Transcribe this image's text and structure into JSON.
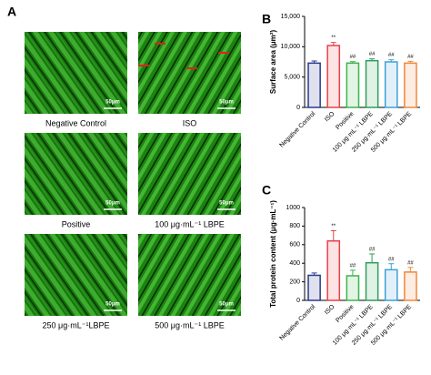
{
  "panel_a": {
    "label": "A",
    "images": [
      {
        "caption": "Negative Control",
        "scale_bar": "50μm"
      },
      {
        "caption": "ISO",
        "scale_bar": "50μm"
      },
      {
        "caption": "Positive",
        "scale_bar": "50μm"
      },
      {
        "caption": "100 μg·mL⁻¹ LBPE",
        "scale_bar": "50μm"
      },
      {
        "caption": "250 μg·mL⁻¹LBPE",
        "scale_bar": "50μm"
      },
      {
        "caption": "500 μg·mL⁻¹ LBPE",
        "scale_bar": "50μm"
      }
    ]
  },
  "chart_data": [
    {
      "type": "bar",
      "panel": "B",
      "ylabel": "Surface area (μm²)",
      "categories": [
        "Negative Control",
        "ISO",
        "Positive",
        "100 μg·mL⁻¹ LBPE",
        "250 μg·mL⁻¹ LBPE",
        "500 μg·mL⁻¹ LBPE"
      ],
      "values": [
        7300,
        10200,
        7300,
        7700,
        7500,
        7300
      ],
      "errors": [
        350,
        500,
        250,
        300,
        350,
        300
      ],
      "annotations": [
        null,
        "**",
        "##",
        "##",
        "##",
        "##"
      ],
      "colors": [
        "#2b3a8f",
        "#e8404a",
        "#3bb54a",
        "#2e9e5a",
        "#3ca0d8",
        "#f0883a"
      ],
      "ylim": [
        0,
        15000
      ],
      "yticks": [
        0,
        {
          "value": 5000,
          "label": "5,000"
        },
        {
          "value": 10000,
          "label": "10,000"
        },
        {
          "value": 15000,
          "label": "15,000"
        }
      ]
    },
    {
      "type": "bar",
      "panel": "C",
      "ylabel": "Total protein content (μg·mL⁻¹)",
      "categories": [
        "Negative Control",
        "ISO",
        "Positive",
        "100 μg·mL⁻¹ LBPE",
        "250 μg·mL⁻¹ LBPE",
        "500 μg·mL⁻¹ LBPE"
      ],
      "values": [
        270,
        640,
        265,
        405,
        330,
        305
      ],
      "errors": [
        25,
        110,
        60,
        95,
        65,
        50
      ],
      "annotations": [
        null,
        "**",
        "##",
        "##",
        "##",
        "##"
      ],
      "colors": [
        "#2b3a8f",
        "#e8404a",
        "#3bb54a",
        "#2e9e5a",
        "#3ca0d8",
        "#f0883a"
      ],
      "ylim": [
        0,
        1000
      ],
      "yticks": [
        0,
        200,
        400,
        600,
        800,
        1000
      ]
    }
  ]
}
